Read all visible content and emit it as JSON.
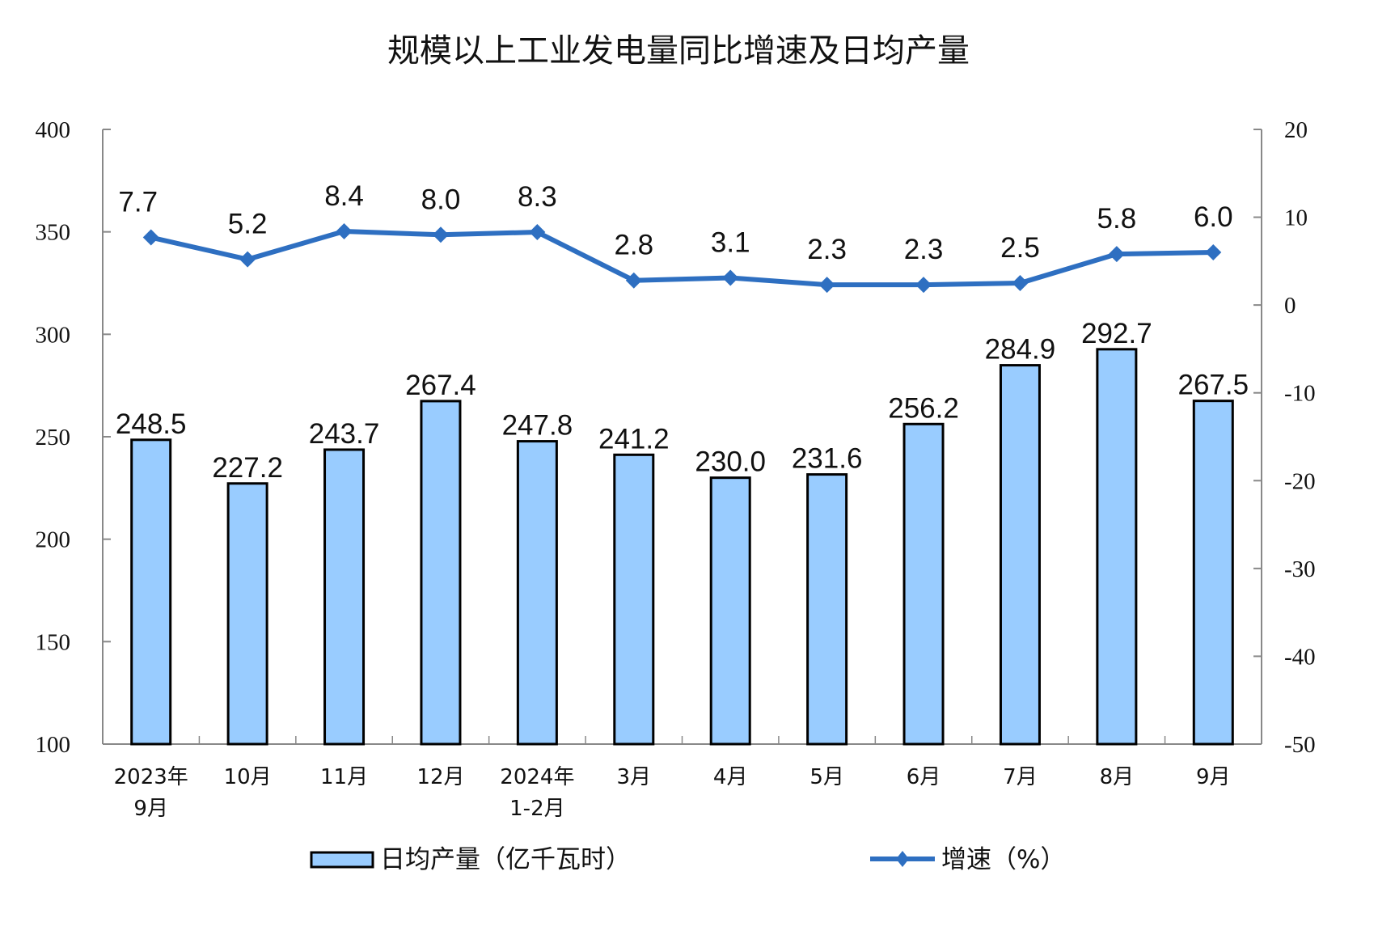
{
  "chart_data": {
    "type": "bar+line",
    "title": "规模以上工业发电量同比增速及日均产量",
    "categories": [
      [
        "2023年",
        "9月"
      ],
      [
        "10月"
      ],
      [
        "11月"
      ],
      [
        "12月"
      ],
      [
        "2024年",
        "1-2月"
      ],
      [
        "3月"
      ],
      [
        "4月"
      ],
      [
        "5月"
      ],
      [
        "6月"
      ],
      [
        "7月"
      ],
      [
        "8月"
      ],
      [
        "9月"
      ]
    ],
    "series": [
      {
        "name": "日均产量（亿千瓦时）",
        "type": "bar",
        "axis": "left",
        "color": "#99CCFF",
        "edge_color": "#000000",
        "values": [
          248.5,
          227.2,
          243.7,
          267.4,
          247.8,
          241.2,
          230.0,
          231.6,
          256.2,
          284.9,
          292.7,
          267.5
        ],
        "labels": [
          "248.5",
          "227.2",
          "243.7",
          "267.4",
          "247.8",
          "241.2",
          "230.0",
          "231.6",
          "256.2",
          "284.9",
          "292.7",
          "267.5"
        ]
      },
      {
        "name": "增速（%）",
        "type": "line",
        "axis": "right",
        "color": "#2E6FC1",
        "marker": "diamond",
        "values": [
          7.7,
          5.2,
          8.4,
          8.0,
          8.3,
          2.8,
          3.1,
          2.3,
          2.3,
          2.5,
          5.8,
          6.0
        ],
        "labels": [
          "7.7",
          "5.2",
          "8.4",
          "8.0",
          "8.3",
          "2.8",
          "3.1",
          "2.3",
          "2.3",
          "2.5",
          "5.8",
          "6.0"
        ]
      }
    ],
    "y_left": {
      "range": [
        100,
        400
      ],
      "ticks": [
        "100",
        "150",
        "200",
        "250",
        "300",
        "350",
        "400"
      ]
    },
    "y_right": {
      "range": [
        -50,
        20
      ],
      "ticks": [
        "-50",
        "-40",
        "-30",
        "-20",
        "-10",
        "0",
        "10",
        "20"
      ]
    },
    "grid": false,
    "legend": "bottom"
  }
}
